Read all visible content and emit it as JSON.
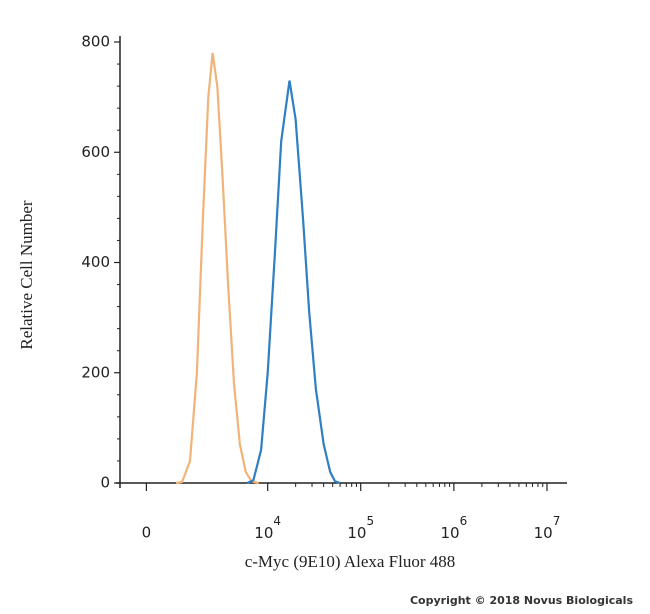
{
  "chart_data": {
    "type": "line",
    "x_label": "c-Myc (9E10) Alexa Fluor 488",
    "y_label": "Relative Cell Number",
    "footer": "Copyright © 2018 Novus Biologicals",
    "xscale": "biexponential",
    "xlim": [
      -700,
      16400000
    ],
    "xticks": [
      0,
      {
        "value": 10000,
        "label": "10",
        "superscript": "4"
      },
      {
        "value": 100000,
        "label": "10",
        "superscript": "5"
      },
      {
        "value": 1000000,
        "label": "10",
        "superscript": "6"
      },
      {
        "value": 10000000,
        "label": "10",
        "superscript": "7"
      }
    ],
    "ylim": [
      0,
      810
    ],
    "yticks": [
      0,
      200,
      400,
      600,
      800
    ],
    "series": [
      {
        "color": "#f0b478",
        "x": [
          800,
          1000,
          1300,
          1600,
          1900,
          2200,
          2470,
          2800,
          3200,
          3700,
          4300,
          5000,
          5800,
          6700,
          8000
        ],
        "values": [
          0,
          2,
          40,
          200,
          480,
          700,
          780,
          720,
          560,
          360,
          180,
          70,
          20,
          3,
          0
        ]
      },
      {
        "color": "#2e7fc3",
        "x": [
          6000,
          7000,
          8500,
          10000,
          12000,
          14000,
          17200,
          20000,
          24000,
          28000,
          33000,
          40000,
          47000,
          53000,
          60000
        ],
        "values": [
          0,
          5,
          60,
          200,
          420,
          620,
          730,
          660,
          480,
          310,
          170,
          70,
          20,
          3,
          0
        ]
      }
    ]
  }
}
